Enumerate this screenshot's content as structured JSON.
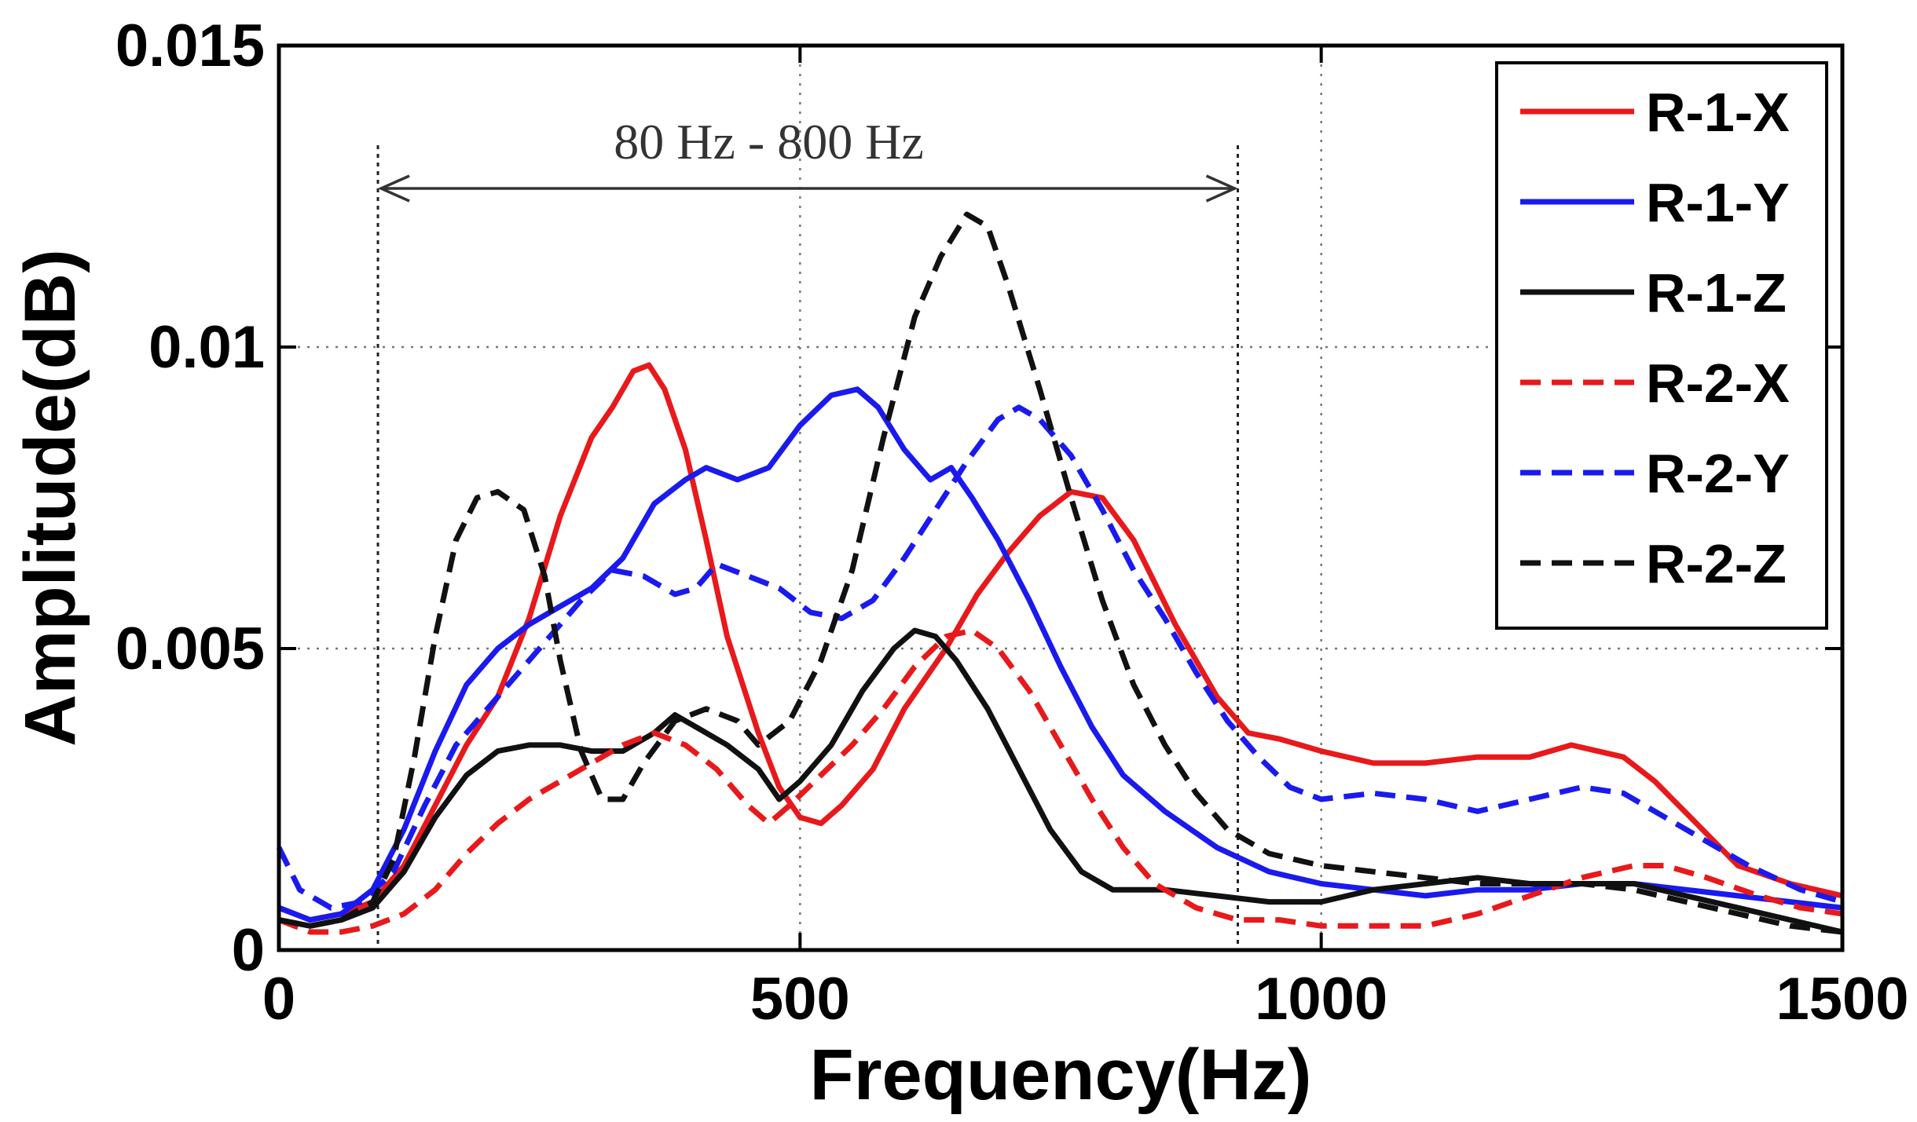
{
  "chart_data": {
    "type": "line",
    "title": "",
    "xlabel": "Frequency(Hz)",
    "ylabel": "Amplitude(dB)",
    "xlim": [
      0,
      1500
    ],
    "ylim": [
      0,
      0.015
    ],
    "x_ticks": [
      0,
      500,
      1000,
      1500
    ],
    "x_tick_labels": [
      "0",
      "500",
      "1000",
      "1500"
    ],
    "y_ticks": [
      0,
      0.005,
      0.01,
      0.015
    ],
    "y_tick_labels": [
      "0",
      "0.005",
      "0.01",
      "0.015"
    ],
    "grid": true,
    "legend_position": "top-right",
    "annotation": {
      "text": "80 Hz - 800 Hz",
      "x_start": 95,
      "x_end": 920
    },
    "series": [
      {
        "name": "R-1-X",
        "color": "#e8191b",
        "dash": "solid",
        "points": [
          [
            0,
            0.0007
          ],
          [
            30,
            0.0005
          ],
          [
            60,
            0.0006
          ],
          [
            90,
            0.0008
          ],
          [
            120,
            0.0014
          ],
          [
            150,
            0.0024
          ],
          [
            180,
            0.0034
          ],
          [
            210,
            0.0042
          ],
          [
            240,
            0.0055
          ],
          [
            270,
            0.0072
          ],
          [
            300,
            0.0085
          ],
          [
            320,
            0.009
          ],
          [
            340,
            0.0096
          ],
          [
            355,
            0.0097
          ],
          [
            370,
            0.0093
          ],
          [
            390,
            0.0083
          ],
          [
            410,
            0.0068
          ],
          [
            430,
            0.0052
          ],
          [
            460,
            0.0036
          ],
          [
            480,
            0.0027
          ],
          [
            500,
            0.0022
          ],
          [
            520,
            0.0021
          ],
          [
            540,
            0.0024
          ],
          [
            570,
            0.003
          ],
          [
            600,
            0.004
          ],
          [
            640,
            0.005
          ],
          [
            670,
            0.0059
          ],
          [
            700,
            0.0066
          ],
          [
            730,
            0.0072
          ],
          [
            760,
            0.0076
          ],
          [
            790,
            0.0075
          ],
          [
            820,
            0.0068
          ],
          [
            860,
            0.0054
          ],
          [
            900,
            0.0042
          ],
          [
            930,
            0.0036
          ],
          [
            960,
            0.0035
          ],
          [
            1000,
            0.0033
          ],
          [
            1050,
            0.0031
          ],
          [
            1100,
            0.0031
          ],
          [
            1150,
            0.0032
          ],
          [
            1200,
            0.0032
          ],
          [
            1240,
            0.0034
          ],
          [
            1290,
            0.0032
          ],
          [
            1320,
            0.0028
          ],
          [
            1360,
            0.0021
          ],
          [
            1400,
            0.0014
          ],
          [
            1450,
            0.0011
          ],
          [
            1500,
            0.0009
          ]
        ]
      },
      {
        "name": "R-1-Y",
        "color": "#1a1aee",
        "dash": "solid",
        "points": [
          [
            0,
            0.0007
          ],
          [
            30,
            0.0005
          ],
          [
            60,
            0.0006
          ],
          [
            90,
            0.001
          ],
          [
            120,
            0.002
          ],
          [
            150,
            0.0033
          ],
          [
            180,
            0.0044
          ],
          [
            210,
            0.005
          ],
          [
            240,
            0.0054
          ],
          [
            270,
            0.0057
          ],
          [
            300,
            0.006
          ],
          [
            330,
            0.0065
          ],
          [
            360,
            0.0074
          ],
          [
            390,
            0.0078
          ],
          [
            410,
            0.008
          ],
          [
            440,
            0.0078
          ],
          [
            470,
            0.008
          ],
          [
            500,
            0.0087
          ],
          [
            530,
            0.0092
          ],
          [
            555,
            0.0093
          ],
          [
            575,
            0.009
          ],
          [
            600,
            0.0083
          ],
          [
            625,
            0.0078
          ],
          [
            645,
            0.008
          ],
          [
            665,
            0.0075
          ],
          [
            690,
            0.0068
          ],
          [
            720,
            0.0058
          ],
          [
            750,
            0.0047
          ],
          [
            780,
            0.0037
          ],
          [
            810,
            0.0029
          ],
          [
            850,
            0.0023
          ],
          [
            900,
            0.0017
          ],
          [
            950,
            0.0013
          ],
          [
            1000,
            0.0011
          ],
          [
            1050,
            0.001
          ],
          [
            1100,
            0.0009
          ],
          [
            1150,
            0.001
          ],
          [
            1200,
            0.001
          ],
          [
            1250,
            0.0011
          ],
          [
            1300,
            0.0011
          ],
          [
            1350,
            0.001
          ],
          [
            1400,
            0.0009
          ],
          [
            1450,
            0.0008
          ],
          [
            1500,
            0.0007
          ]
        ]
      },
      {
        "name": "R-1-Z",
        "color": "#111111",
        "dash": "solid",
        "points": [
          [
            0,
            0.0005
          ],
          [
            30,
            0.0004
          ],
          [
            60,
            0.0005
          ],
          [
            90,
            0.0007
          ],
          [
            120,
            0.0013
          ],
          [
            150,
            0.0022
          ],
          [
            180,
            0.0029
          ],
          [
            210,
            0.0033
          ],
          [
            240,
            0.0034
          ],
          [
            270,
            0.0034
          ],
          [
            300,
            0.0033
          ],
          [
            330,
            0.0033
          ],
          [
            360,
            0.0036
          ],
          [
            380,
            0.0039
          ],
          [
            400,
            0.0037
          ],
          [
            430,
            0.0034
          ],
          [
            460,
            0.003
          ],
          [
            480,
            0.0025
          ],
          [
            500,
            0.0028
          ],
          [
            530,
            0.0034
          ],
          [
            560,
            0.0043
          ],
          [
            590,
            0.005
          ],
          [
            610,
            0.0053
          ],
          [
            630,
            0.0052
          ],
          [
            650,
            0.0048
          ],
          [
            680,
            0.004
          ],
          [
            710,
            0.003
          ],
          [
            740,
            0.002
          ],
          [
            770,
            0.0013
          ],
          [
            800,
            0.001
          ],
          [
            850,
            0.001
          ],
          [
            900,
            0.0009
          ],
          [
            950,
            0.0008
          ],
          [
            1000,
            0.0008
          ],
          [
            1050,
            0.001
          ],
          [
            1100,
            0.0011
          ],
          [
            1150,
            0.0012
          ],
          [
            1200,
            0.0011
          ],
          [
            1250,
            0.0011
          ],
          [
            1300,
            0.0011
          ],
          [
            1350,
            0.0009
          ],
          [
            1400,
            0.0007
          ],
          [
            1450,
            0.0005
          ],
          [
            1500,
            0.0003
          ]
        ]
      },
      {
        "name": "R-2-X",
        "color": "#e8191b",
        "dash": "dashed",
        "points": [
          [
            0,
            0.0005
          ],
          [
            30,
            0.0003
          ],
          [
            60,
            0.0003
          ],
          [
            90,
            0.0004
          ],
          [
            120,
            0.0006
          ],
          [
            150,
            0.001
          ],
          [
            180,
            0.0016
          ],
          [
            210,
            0.0021
          ],
          [
            240,
            0.0025
          ],
          [
            270,
            0.0028
          ],
          [
            300,
            0.0031
          ],
          [
            330,
            0.0034
          ],
          [
            360,
            0.0036
          ],
          [
            390,
            0.0034
          ],
          [
            420,
            0.003
          ],
          [
            450,
            0.0024
          ],
          [
            470,
            0.0021
          ],
          [
            490,
            0.0024
          ],
          [
            520,
            0.0029
          ],
          [
            550,
            0.0034
          ],
          [
            580,
            0.004
          ],
          [
            610,
            0.0047
          ],
          [
            640,
            0.0052
          ],
          [
            665,
            0.0053
          ],
          [
            690,
            0.005
          ],
          [
            720,
            0.0043
          ],
          [
            750,
            0.0034
          ],
          [
            780,
            0.0025
          ],
          [
            810,
            0.0017
          ],
          [
            840,
            0.0011
          ],
          [
            880,
            0.0007
          ],
          [
            920,
            0.0005
          ],
          [
            960,
            0.0005
          ],
          [
            1000,
            0.0004
          ],
          [
            1050,
            0.0004
          ],
          [
            1100,
            0.0004
          ],
          [
            1150,
            0.0006
          ],
          [
            1200,
            0.0009
          ],
          [
            1250,
            0.0012
          ],
          [
            1300,
            0.0014
          ],
          [
            1330,
            0.0014
          ],
          [
            1370,
            0.0012
          ],
          [
            1420,
            0.0009
          ],
          [
            1460,
            0.0007
          ],
          [
            1500,
            0.0006
          ]
        ]
      },
      {
        "name": "R-2-Y",
        "color": "#1a1aee",
        "dash": "dashed",
        "points": [
          [
            0,
            0.0017
          ],
          [
            20,
            0.001
          ],
          [
            50,
            0.0007
          ],
          [
            80,
            0.0008
          ],
          [
            110,
            0.0013
          ],
          [
            140,
            0.0024
          ],
          [
            170,
            0.0034
          ],
          [
            200,
            0.004
          ],
          [
            230,
            0.0046
          ],
          [
            260,
            0.0052
          ],
          [
            290,
            0.0058
          ],
          [
            320,
            0.0063
          ],
          [
            350,
            0.0062
          ],
          [
            380,
            0.0059
          ],
          [
            400,
            0.006
          ],
          [
            420,
            0.0064
          ],
          [
            450,
            0.0062
          ],
          [
            480,
            0.006
          ],
          [
            510,
            0.0056
          ],
          [
            540,
            0.0055
          ],
          [
            570,
            0.0058
          ],
          [
            600,
            0.0065
          ],
          [
            630,
            0.0073
          ],
          [
            660,
            0.0081
          ],
          [
            690,
            0.0088
          ],
          [
            710,
            0.009
          ],
          [
            730,
            0.0088
          ],
          [
            760,
            0.0082
          ],
          [
            790,
            0.0073
          ],
          [
            820,
            0.0063
          ],
          [
            850,
            0.0055
          ],
          [
            880,
            0.0046
          ],
          [
            910,
            0.0038
          ],
          [
            940,
            0.0032
          ],
          [
            970,
            0.0027
          ],
          [
            1000,
            0.0025
          ],
          [
            1050,
            0.0026
          ],
          [
            1100,
            0.0025
          ],
          [
            1150,
            0.0023
          ],
          [
            1200,
            0.0025
          ],
          [
            1250,
            0.0027
          ],
          [
            1290,
            0.0026
          ],
          [
            1330,
            0.0022
          ],
          [
            1370,
            0.0018
          ],
          [
            1410,
            0.0014
          ],
          [
            1460,
            0.001
          ],
          [
            1500,
            0.0008
          ]
        ]
      },
      {
        "name": "R-2-Z",
        "color": "#111111",
        "dash": "dashed",
        "points": [
          [
            0,
            0.0005
          ],
          [
            30,
            0.0004
          ],
          [
            60,
            0.0005
          ],
          [
            90,
            0.0008
          ],
          [
            110,
            0.0015
          ],
          [
            130,
            0.0032
          ],
          [
            150,
            0.0052
          ],
          [
            170,
            0.0068
          ],
          [
            190,
            0.0075
          ],
          [
            210,
            0.0076
          ],
          [
            235,
            0.0073
          ],
          [
            255,
            0.0062
          ],
          [
            270,
            0.0048
          ],
          [
            290,
            0.0033
          ],
          [
            310,
            0.0025
          ],
          [
            330,
            0.0025
          ],
          [
            350,
            0.0031
          ],
          [
            380,
            0.0038
          ],
          [
            410,
            0.004
          ],
          [
            440,
            0.0038
          ],
          [
            460,
            0.0034
          ],
          [
            490,
            0.0038
          ],
          [
            520,
            0.0048
          ],
          [
            550,
            0.0063
          ],
          [
            580,
            0.0085
          ],
          [
            610,
            0.0105
          ],
          [
            635,
            0.0115
          ],
          [
            660,
            0.0122
          ],
          [
            680,
            0.012
          ],
          [
            700,
            0.011
          ],
          [
            730,
            0.0093
          ],
          [
            760,
            0.0075
          ],
          [
            790,
            0.0058
          ],
          [
            820,
            0.0044
          ],
          [
            850,
            0.0034
          ],
          [
            880,
            0.0026
          ],
          [
            910,
            0.002
          ],
          [
            950,
            0.0016
          ],
          [
            1000,
            0.0014
          ],
          [
            1050,
            0.0013
          ],
          [
            1100,
            0.0012
          ],
          [
            1150,
            0.0011
          ],
          [
            1200,
            0.0011
          ],
          [
            1250,
            0.0011
          ],
          [
            1300,
            0.001
          ],
          [
            1350,
            0.0008
          ],
          [
            1400,
            0.0006
          ],
          [
            1450,
            0.0004
          ],
          [
            1500,
            0.0003
          ]
        ]
      }
    ]
  }
}
